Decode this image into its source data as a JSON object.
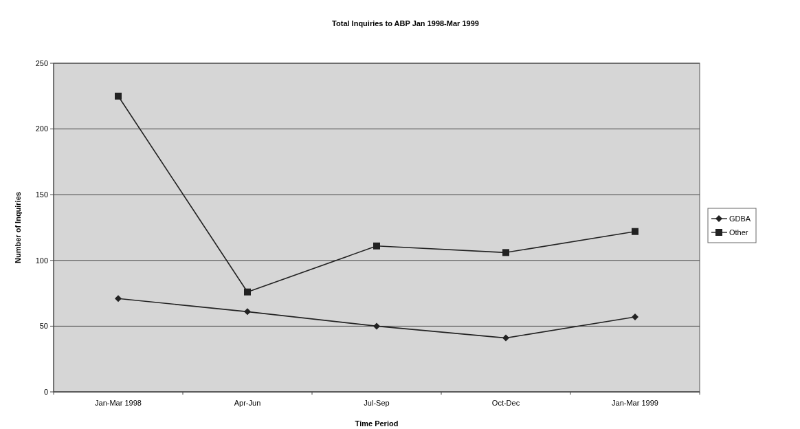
{
  "chart_data": {
    "type": "line",
    "title": "Total Inquiries to ABP Jan 1998-Mar 1999",
    "xlabel": "Time Period",
    "ylabel": "Number of Inquiries",
    "categories": [
      "Jan-Mar 1998",
      "Apr-Jun",
      "Jul-Sep",
      "Oct-Dec",
      "Jan-Mar 1999"
    ],
    "series": [
      {
        "name": "GDBA",
        "color": "#222222",
        "values": [
          71,
          61,
          50,
          41,
          57
        ],
        "marker": "diamond"
      },
      {
        "name": "Other",
        "color": "#222222",
        "values": [
          225,
          76,
          111,
          106,
          122
        ],
        "marker": "square"
      }
    ],
    "ylim": [
      0,
      250
    ],
    "yticks": [
      0,
      50,
      100,
      150,
      200,
      250
    ],
    "grid": "y",
    "legend": "right",
    "line_style": "solid"
  }
}
